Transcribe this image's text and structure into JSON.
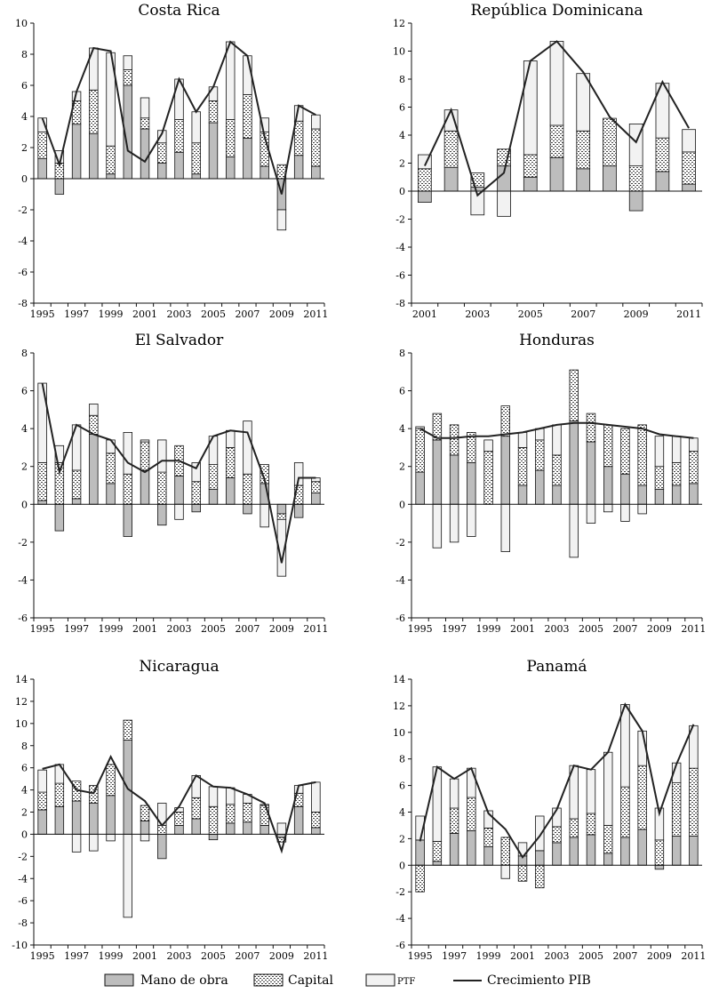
{
  "colors": {
    "labor": "#bdbdbd",
    "capital": "#ffffff",
    "tfp": "#f2f2f2",
    "line": "#222222",
    "axis": "#111111"
  },
  "legend": {
    "items": [
      {
        "label": "Mano de obra",
        "key": "labor"
      },
      {
        "label": "Capital",
        "key": "capital"
      },
      {
        "label": "PTF",
        "key": "tfp"
      },
      {
        "label": "Crecimiento PIB",
        "key": "gdp"
      }
    ]
  },
  "chart_data": [
    {
      "type": "bar",
      "title": "Costa Rica",
      "x": [
        1995,
        1996,
        1997,
        1998,
        1999,
        2000,
        2001,
        2002,
        2003,
        2004,
        2005,
        2006,
        2007,
        2008,
        2009,
        2010,
        2011
      ],
      "x_tick_labels": [
        "1995",
        "1997",
        "1999",
        "2001",
        "2003",
        "2005",
        "2007",
        "2009",
        "2011"
      ],
      "ylim": [
        -8,
        10
      ],
      "yticks": [
        -8,
        -6,
        -4,
        -2,
        0,
        2,
        4,
        6,
        8,
        10
      ],
      "series": [
        {
          "name": "Mano de obra",
          "values": [
            1.3,
            -1.0,
            3.5,
            2.9,
            0.3,
            6.0,
            3.2,
            1.0,
            1.7,
            0.3,
            3.6,
            1.4,
            2.6,
            0.8,
            -2.0,
            1.5,
            0.8
          ]
        },
        {
          "name": "Capital",
          "values": [
            1.7,
            1.0,
            1.5,
            2.8,
            1.8,
            1.0,
            0.7,
            1.3,
            2.1,
            2.0,
            1.4,
            2.4,
            2.8,
            2.2,
            0.9,
            2.2,
            2.4
          ]
        },
        {
          "name": "PTF",
          "values": [
            0.9,
            0.8,
            0.6,
            2.7,
            6.0,
            0.9,
            1.3,
            0.8,
            2.6,
            2.0,
            0.9,
            5.0,
            2.5,
            0.9,
            -1.3,
            1.0,
            0.9
          ]
        },
        {
          "name": "Crecimiento PIB",
          "values": [
            3.9,
            0.9,
            5.6,
            8.4,
            8.2,
            1.8,
            1.1,
            2.9,
            6.4,
            4.3,
            5.9,
            8.8,
            7.9,
            2.7,
            -1.0,
            4.7,
            4.1
          ]
        }
      ]
    },
    {
      "type": "bar",
      "title": "República Dominicana",
      "x": [
        2001,
        2002,
        2003,
        2004,
        2005,
        2006,
        2007,
        2008,
        2009,
        2010,
        2011
      ],
      "x_tick_labels": [
        "2001",
        "2003",
        "2005",
        "2007",
        "2009",
        "2011"
      ],
      "ylim": [
        -8,
        12
      ],
      "yticks": [
        -8,
        -6,
        -4,
        -2,
        0,
        2,
        4,
        6,
        8,
        10,
        12
      ],
      "series": [
        {
          "name": "Mano de obra",
          "values": [
            -0.8,
            1.7,
            0.3,
            1.8,
            1.0,
            2.4,
            1.6,
            1.8,
            -1.4,
            1.4,
            0.5
          ]
        },
        {
          "name": "Capital",
          "values": [
            1.6,
            2.6,
            1.0,
            1.2,
            1.6,
            2.3,
            2.7,
            3.4,
            1.8,
            2.4,
            2.3
          ]
        },
        {
          "name": "PTF",
          "values": [
            1.0,
            1.5,
            -1.7,
            -1.8,
            6.7,
            6.0,
            4.1,
            0.0,
            3.0,
            3.9,
            1.6
          ]
        },
        {
          "name": "Crecimiento PIB",
          "values": [
            1.8,
            5.8,
            -0.3,
            1.3,
            9.3,
            10.7,
            8.5,
            5.3,
            3.5,
            7.8,
            4.5
          ]
        }
      ]
    },
    {
      "type": "bar",
      "title": "El Salvador",
      "x": [
        1995,
        1996,
        1997,
        1998,
        1999,
        2000,
        2001,
        2002,
        2003,
        2004,
        2005,
        2006,
        2007,
        2008,
        2009,
        2010,
        2011
      ],
      "x_tick_labels": [
        "1995",
        "1997",
        "1999",
        "2001",
        "2003",
        "2005",
        "2007",
        "2009",
        "2011"
      ],
      "ylim": [
        -6,
        8
      ],
      "yticks": [
        -6,
        -4,
        -2,
        0,
        2,
        4,
        6,
        8
      ],
      "series": [
        {
          "name": "Mano de obra",
          "values": [
            0.2,
            -1.4,
            0.3,
            3.7,
            1.1,
            -1.7,
            1.8,
            -1.1,
            1.5,
            -0.4,
            0.8,
            1.4,
            -0.5,
            1.1,
            -0.5,
            -0.7,
            0.6
          ]
        },
        {
          "name": "Capital",
          "values": [
            2.0,
            2.2,
            1.5,
            1.0,
            1.6,
            1.6,
            1.5,
            1.7,
            1.6,
            1.2,
            1.3,
            1.6,
            1.6,
            1.0,
            -0.3,
            1.0,
            0.6
          ]
        },
        {
          "name": "PTF",
          "values": [
            4.2,
            0.9,
            2.4,
            0.6,
            0.7,
            2.2,
            0.1,
            1.7,
            -0.8,
            1.0,
            1.5,
            0.9,
            2.8,
            -1.2,
            -3.0,
            1.2,
            0.2
          ]
        },
        {
          "name": "Crecimiento PIB",
          "values": [
            6.4,
            1.7,
            4.2,
            3.7,
            3.4,
            2.2,
            1.7,
            2.3,
            2.3,
            1.9,
            3.6,
            3.9,
            3.8,
            1.3,
            -3.1,
            1.4,
            1.4
          ]
        }
      ]
    },
    {
      "type": "bar",
      "title": "Honduras",
      "x": [
        1995,
        1996,
        1997,
        1998,
        1999,
        2000,
        2001,
        2002,
        2003,
        2004,
        2005,
        2006,
        2007,
        2008,
        2009,
        2010,
        2011
      ],
      "x_tick_labels": [
        "1995",
        "1997",
        "1999",
        "2001",
        "2003",
        "2005",
        "2007",
        "2009",
        "2011"
      ],
      "ylim": [
        -6,
        8
      ],
      "yticks": [
        -6,
        -4,
        -2,
        0,
        2,
        4,
        6,
        8
      ],
      "series": [
        {
          "name": "Mano de obra",
          "values": [
            1.7,
            3.4,
            2.6,
            2.2,
            0.0,
            3.6,
            1.0,
            1.8,
            1.0,
            4.4,
            3.3,
            2.0,
            1.6,
            1.0,
            0.8,
            1.0,
            1.1
          ]
        },
        {
          "name": "Capital",
          "values": [
            2.3,
            1.4,
            1.6,
            1.6,
            2.8,
            1.6,
            2.0,
            1.6,
            1.6,
            2.7,
            1.5,
            2.2,
            2.4,
            3.2,
            1.2,
            1.2,
            1.7
          ]
        },
        {
          "name": "PTF",
          "values": [
            0.1,
            -2.3,
            -2.0,
            -1.7,
            0.6,
            -2.5,
            0.8,
            0.6,
            1.6,
            -2.8,
            -1.0,
            -0.4,
            -0.9,
            -0.5,
            1.6,
            1.4,
            0.7
          ]
        },
        {
          "name": "Crecimiento PIB",
          "values": [
            4.0,
            3.5,
            3.5,
            3.6,
            3.6,
            3.7,
            3.8,
            4.0,
            4.2,
            4.3,
            4.3,
            4.2,
            4.1,
            4.0,
            3.7,
            3.6,
            3.5
          ]
        }
      ]
    },
    {
      "type": "bar",
      "title": "Nicaragua",
      "x": [
        1995,
        1996,
        1997,
        1998,
        1999,
        2000,
        2001,
        2002,
        2003,
        2004,
        2005,
        2006,
        2007,
        2008,
        2009,
        2010,
        2011
      ],
      "x_tick_labels": [
        "1995",
        "1997",
        "1999",
        "2001",
        "2003",
        "2005",
        "2007",
        "2009",
        "2011"
      ],
      "ylim": [
        -10,
        14
      ],
      "yticks": [
        -10,
        -8,
        -6,
        -4,
        -2,
        0,
        2,
        4,
        6,
        8,
        10,
        12,
        14
      ],
      "series": [
        {
          "name": "Mano de obra",
          "values": [
            2.2,
            2.5,
            3.0,
            2.8,
            3.5,
            8.5,
            1.2,
            -2.2,
            0.8,
            1.4,
            -0.5,
            1.0,
            1.1,
            0.8,
            -0.3,
            2.5,
            0.6
          ]
        },
        {
          "name": "Capital",
          "values": [
            1.6,
            2.1,
            1.8,
            1.6,
            2.8,
            1.8,
            1.4,
            0.8,
            1.2,
            1.9,
            2.5,
            1.7,
            1.7,
            1.8,
            -0.4,
            1.2,
            1.4
          ]
        },
        {
          "name": "PTF",
          "values": [
            2.0,
            1.7,
            -1.6,
            -1.5,
            -0.6,
            -7.5,
            -0.6,
            2.0,
            0.4,
            2.0,
            1.8,
            1.5,
            0.8,
            0.1,
            1.0,
            0.7,
            2.7
          ]
        },
        {
          "name": "Crecimiento PIB",
          "values": [
            5.9,
            6.3,
            4.0,
            3.7,
            7.0,
            4.1,
            3.0,
            0.8,
            2.5,
            5.3,
            4.3,
            4.2,
            3.6,
            2.8,
            -1.5,
            4.4,
            4.7
          ]
        }
      ]
    },
    {
      "type": "bar",
      "title": "Panamá",
      "x": [
        1995,
        1996,
        1997,
        1998,
        1999,
        2000,
        2001,
        2002,
        2003,
        2004,
        2005,
        2006,
        2007,
        2008,
        2009,
        2010,
        2011
      ],
      "x_tick_labels": [
        "1995",
        "1997",
        "1999",
        "2001",
        "2003",
        "2005",
        "2007",
        "2009",
        "2011"
      ],
      "ylim": [
        -6,
        14
      ],
      "yticks": [
        -6,
        -4,
        -2,
        0,
        2,
        4,
        6,
        8,
        10,
        12,
        14
      ],
      "series": [
        {
          "name": "Mano de obra",
          "values": [
            1.9,
            0.3,
            2.4,
            2.6,
            1.4,
            0.0,
            0.7,
            1.1,
            1.7,
            2.1,
            2.3,
            0.9,
            2.1,
            2.7,
            -0.3,
            2.2,
            2.2
          ]
        },
        {
          "name": "Capital",
          "values": [
            -2.0,
            1.5,
            1.9,
            2.5,
            1.4,
            2.1,
            -1.2,
            -1.7,
            1.2,
            1.4,
            1.6,
            2.1,
            3.8,
            4.8,
            1.9,
            4.0,
            5.1
          ]
        },
        {
          "name": "PTF",
          "values": [
            1.8,
            5.6,
            2.2,
            2.2,
            1.3,
            -1.0,
            1.0,
            2.6,
            1.4,
            4.0,
            3.3,
            5.5,
            6.2,
            2.6,
            2.4,
            1.5,
            3.2
          ]
        },
        {
          "name": "Crecimiento PIB",
          "values": [
            1.8,
            7.4,
            6.5,
            7.3,
            3.9,
            2.7,
            0.6,
            2.2,
            4.2,
            7.5,
            7.2,
            8.5,
            12.1,
            10.1,
            3.9,
            7.6,
            10.6
          ]
        }
      ]
    }
  ]
}
